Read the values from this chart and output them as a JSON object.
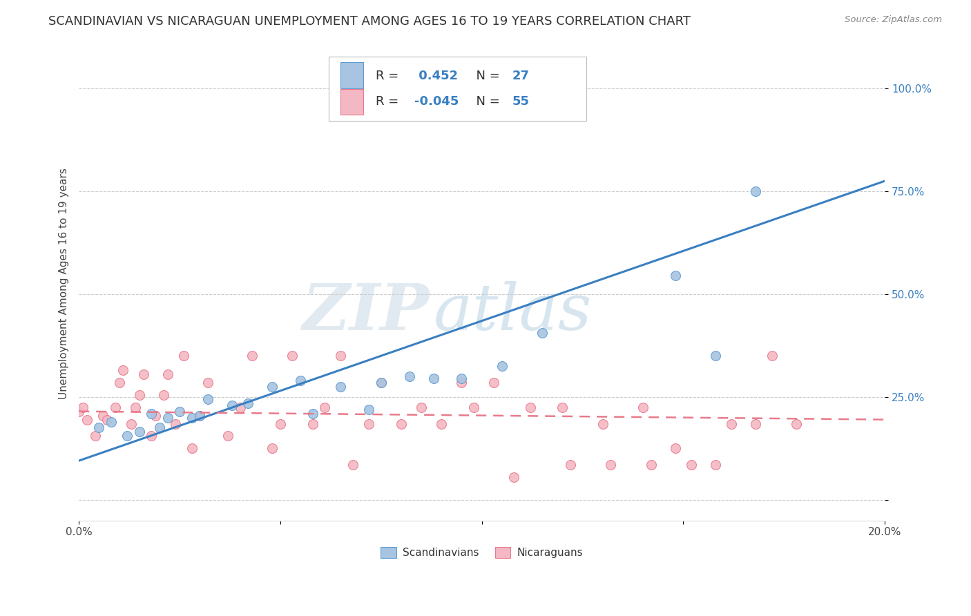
{
  "title": "SCANDINAVIAN VS NICARAGUAN UNEMPLOYMENT AMONG AGES 16 TO 19 YEARS CORRELATION CHART",
  "source": "Source: ZipAtlas.com",
  "ylabel": "Unemployment Among Ages 16 to 19 years",
  "xlim": [
    0.0,
    0.2
  ],
  "ylim": [
    -0.05,
    1.1
  ],
  "xticks": [
    0.0,
    0.05,
    0.1,
    0.15,
    0.2
  ],
  "xticklabels": [
    "0.0%",
    "",
    "",
    "",
    "20.0%"
  ],
  "ytick_positions": [
    0.0,
    0.25,
    0.5,
    0.75,
    1.0
  ],
  "yticklabels": [
    "",
    "25.0%",
    "50.0%",
    "75.0%",
    "100.0%"
  ],
  "grid_color": "#cccccc",
  "background_color": "#ffffff",
  "watermark_zip": "ZIP",
  "watermark_atlas": "atlas",
  "scandinavian_color": "#a8c4e0",
  "scandinavian_edge": "#5b9bd5",
  "nicaraguan_color": "#f4b8c4",
  "nicaraguan_edge": "#e87a8a",
  "blue_line_color": "#3a7fc1",
  "pink_line_color": "#e87a8a",
  "scandinavian_x": [
    0.005,
    0.008,
    0.012,
    0.015,
    0.018,
    0.02,
    0.022,
    0.025,
    0.028,
    0.03,
    0.032,
    0.038,
    0.042,
    0.048,
    0.055,
    0.058,
    0.065,
    0.072,
    0.075,
    0.082,
    0.088,
    0.095,
    0.105,
    0.115,
    0.148,
    0.158,
    0.168
  ],
  "scandinavian_y": [
    0.175,
    0.19,
    0.155,
    0.165,
    0.21,
    0.175,
    0.2,
    0.215,
    0.2,
    0.205,
    0.245,
    0.23,
    0.235,
    0.275,
    0.29,
    0.21,
    0.275,
    0.22,
    0.285,
    0.3,
    0.295,
    0.295,
    0.325,
    0.405,
    0.545,
    0.35,
    0.75
  ],
  "nicaraguan_x": [
    0.0,
    0.001,
    0.002,
    0.004,
    0.006,
    0.007,
    0.009,
    0.01,
    0.011,
    0.013,
    0.014,
    0.015,
    0.016,
    0.018,
    0.019,
    0.021,
    0.022,
    0.024,
    0.026,
    0.028,
    0.03,
    0.032,
    0.037,
    0.04,
    0.043,
    0.048,
    0.05,
    0.053,
    0.058,
    0.061,
    0.065,
    0.068,
    0.072,
    0.075,
    0.08,
    0.085,
    0.09,
    0.095,
    0.098,
    0.103,
    0.108,
    0.112,
    0.12,
    0.122,
    0.13,
    0.132,
    0.14,
    0.142,
    0.148,
    0.152,
    0.158,
    0.162,
    0.168,
    0.172,
    0.178
  ],
  "nicaraguan_y": [
    0.215,
    0.225,
    0.195,
    0.155,
    0.205,
    0.195,
    0.225,
    0.285,
    0.315,
    0.185,
    0.225,
    0.255,
    0.305,
    0.155,
    0.205,
    0.255,
    0.305,
    0.185,
    0.35,
    0.125,
    0.205,
    0.285,
    0.155,
    0.225,
    0.35,
    0.125,
    0.185,
    0.35,
    0.185,
    0.225,
    0.35,
    0.085,
    0.185,
    0.285,
    0.185,
    0.225,
    0.185,
    0.285,
    0.225,
    0.285,
    0.055,
    0.225,
    0.225,
    0.085,
    0.185,
    0.085,
    0.225,
    0.085,
    0.125,
    0.085,
    0.085,
    0.185,
    0.185,
    0.35,
    0.185
  ],
  "blue_trendline_x": [
    0.0,
    0.2
  ],
  "blue_trendline_y": [
    0.095,
    0.775
  ],
  "pink_trendline_x": [
    0.0,
    0.2
  ],
  "pink_trendline_y": [
    0.215,
    0.195
  ],
  "marker_size": 100,
  "title_fontsize": 13,
  "label_fontsize": 11,
  "tick_fontsize": 11,
  "legend_fontsize": 13,
  "value_color": "#3a7fc1"
}
